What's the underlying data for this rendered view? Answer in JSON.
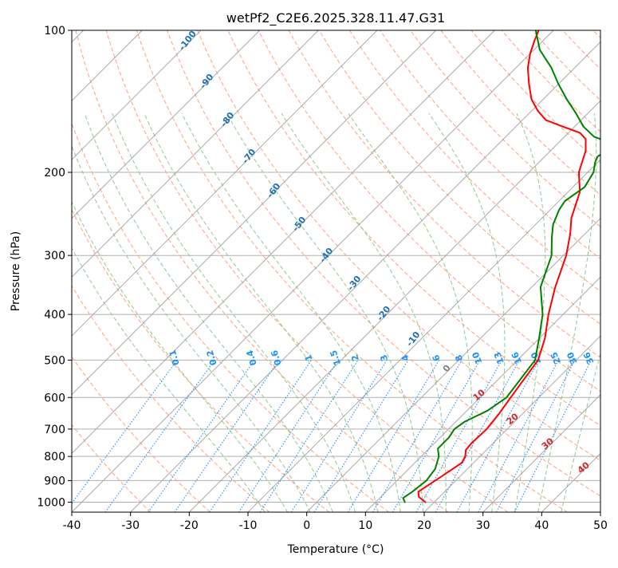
{
  "chart_data": {
    "type": "line",
    "chart_kind": "skew-T log-P",
    "title": "wetPf2_C2E6.2025.328.11.47.G31",
    "xlabel": "Temperature (°C)",
    "ylabel": "Pressure (hPa)",
    "xlim": [
      -40,
      50
    ],
    "plim": [
      1050,
      100
    ],
    "x_ticks": [
      "-40",
      "-30",
      "-20",
      "-10",
      "0",
      "10",
      "20",
      "30",
      "40",
      "50"
    ],
    "p_ticks": [
      1000,
      900,
      800,
      700,
      600,
      500,
      400,
      300,
      200,
      100
    ],
    "p_tick_labels": [
      "1000",
      "900",
      "800",
      "700",
      "600",
      "500",
      "400",
      "300",
      "200",
      "100"
    ],
    "grid": true,
    "skew_deg_per_logp": 45,
    "colors": {
      "temperature": "#ff0000",
      "dewpoint": "#008000",
      "isotherm": "#a0a0a0",
      "dry_adiabat": "#ffa07a",
      "moist_adiabat": "#90c890",
      "mixing_ratio": "#1e90ff",
      "moist_label": "#1f6fb2",
      "dry_label": "#d62728",
      "lcl_label": "#808080"
    },
    "series": [
      {
        "name": "Temperature",
        "color": "#ff0000",
        "points": [
          [
            18.5,
            1000
          ],
          [
            16.5,
            975
          ],
          [
            15.5,
            950
          ],
          [
            16.5,
            900
          ],
          [
            17.5,
            850
          ],
          [
            18,
            825
          ],
          [
            17.5,
            800
          ],
          [
            16.5,
            775
          ],
          [
            16.3,
            750
          ],
          [
            16.5,
            700
          ],
          [
            16,
            650
          ],
          [
            15.2,
            600
          ],
          [
            13.5,
            500
          ],
          [
            11,
            450
          ],
          [
            7.5,
            400
          ],
          [
            4,
            350
          ],
          [
            0.5,
            300
          ],
          [
            -2.5,
            270
          ],
          [
            -5,
            250
          ],
          [
            -8,
            220
          ],
          [
            -11.5,
            200
          ],
          [
            -14,
            180
          ],
          [
            -16,
            170
          ],
          [
            -18,
            165
          ],
          [
            -22,
            160
          ],
          [
            -26,
            155
          ],
          [
            -29,
            148
          ],
          [
            -32,
            140
          ],
          [
            -35,
            130
          ],
          [
            -38,
            120
          ],
          [
            -40,
            112
          ],
          [
            -41.5,
            105
          ],
          [
            -42.5,
            100
          ]
        ]
      },
      {
        "name": "Dewpoint",
        "color": "#008000",
        "points": [
          [
            15,
            1000
          ],
          [
            14,
            980
          ],
          [
            14.5,
            950
          ],
          [
            15,
            900
          ],
          [
            14.5,
            850
          ],
          [
            13,
            800
          ],
          [
            11.5,
            770
          ],
          [
            11.5,
            730
          ],
          [
            11,
            700
          ],
          [
            11.5,
            675
          ],
          [
            13.5,
            640
          ],
          [
            14.5,
            600
          ],
          [
            13,
            500
          ],
          [
            10,
            450
          ],
          [
            6.5,
            400
          ],
          [
            1.5,
            350
          ],
          [
            -2,
            300
          ],
          [
            -5,
            275
          ],
          [
            -7,
            258
          ],
          [
            -8.5,
            240
          ],
          [
            -9,
            230
          ],
          [
            -8,
            215
          ],
          [
            -9,
            200
          ],
          [
            -10.5,
            190
          ],
          [
            -11,
            185
          ],
          [
            -10,
            178
          ],
          [
            -12,
            172
          ],
          [
            -15,
            168
          ],
          [
            -18.5,
            160
          ],
          [
            -22,
            150
          ],
          [
            -26,
            140
          ],
          [
            -30,
            130
          ],
          [
            -34,
            120
          ],
          [
            -39,
            110
          ],
          [
            -43,
            100
          ]
        ]
      }
    ],
    "moist_adiabat_labels": [
      "-100",
      "-90",
      "-80",
      "-70",
      "-60",
      "-50",
      "-40",
      "-30",
      "-20",
      "-10",
      "0"
    ],
    "dry_adiabat_labels": [
      "10",
      "20",
      "30",
      "40"
    ],
    "mixing_ratio_labels": [
      "0.1",
      "0.2",
      "0.4",
      "0.6",
      "1",
      "1.5",
      "2",
      "3",
      "4",
      "6",
      "8",
      "10",
      "13",
      "16",
      "20",
      "25",
      "30",
      "36"
    ],
    "mixing_ratio_values": [
      0.1,
      0.2,
      0.4,
      0.6,
      1,
      1.5,
      2,
      3,
      4,
      6,
      8,
      10,
      13,
      16,
      20,
      25,
      30,
      36
    ]
  }
}
